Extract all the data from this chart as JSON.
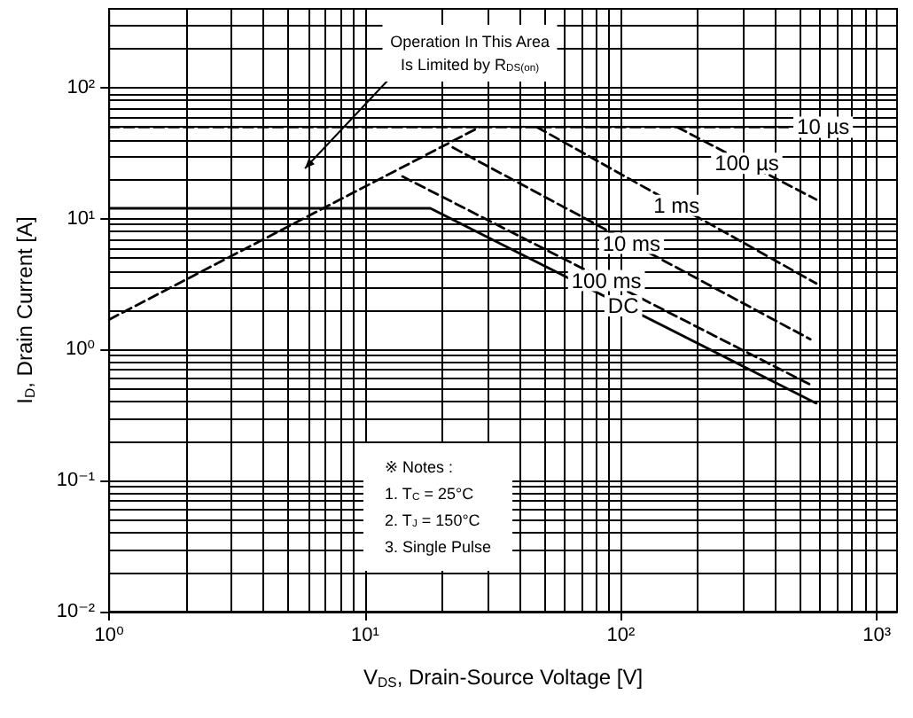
{
  "chart_data": {
    "type": "line",
    "xlabel": "V$_{DS}$, Drain-Source Voltage [V]",
    "ylabel": "I$_{D}$, Drain Current [A]",
    "log": "xy",
    "grid": true,
    "legend": false,
    "xlim": [
      1,
      1200
    ],
    "xticks": [
      {
        "value": 1,
        "label": "10⁰"
      },
      {
        "value": 10,
        "label": "10¹"
      },
      {
        "value": 100,
        "label": "10²"
      },
      {
        "value": 1000,
        "label": "10³"
      }
    ],
    "ylim": [
      0.01,
      400
    ],
    "yticks": [
      {
        "value": 0.01,
        "label": "10⁻²"
      },
      {
        "value": 0.1,
        "label": "10⁻¹"
      },
      {
        "value": 1,
        "label": "10⁰"
      },
      {
        "value": 10,
        "label": "10¹"
      },
      {
        "value": 100,
        "label": "10²"
      }
    ],
    "series": [
      {
        "color": "#000000",
        "line_style": "dashed",
        "x": [
          1,
          28
        ],
        "values": [
          1.7,
          50
        ]
      },
      {
        "name": "10 µs",
        "color": "#000000",
        "line_style": "dashed",
        "x": [
          1,
          450
        ],
        "values": [
          50,
          50
        ]
      },
      {
        "name": "100 µs",
        "color": "#000000",
        "line_style": "dashed",
        "x": [
          166,
          580
        ],
        "values": [
          50,
          14
        ]
      },
      {
        "name": "1 ms",
        "color": "#000000",
        "line_style": "dashed",
        "x": [
          47,
          580
        ],
        "values": [
          50,
          3.2
        ]
      },
      {
        "name": "10 ms",
        "color": "#000000",
        "line_style": "dashed",
        "x": [
          22,
          550
        ],
        "values": [
          35,
          1.2
        ]
      },
      {
        "name": "100 ms",
        "color": "#000000",
        "line_style": "dashed",
        "x": [
          14,
          550
        ],
        "values": [
          21,
          0.54
        ]
      },
      {
        "name": "DC",
        "color": "#000000",
        "line_style": "solid",
        "x": [
          1,
          18,
          580
        ],
        "values": [
          12,
          12,
          0.39
        ]
      }
    ],
    "annotations": [
      "Operation In This Area\nIs Limited by R$_{DS(on)}$",
      "※ Notes :\n1. T$_{C}$ = 25°C\n2. T$_{J}$ = 150°C\n3. Single Pulse"
    ]
  }
}
